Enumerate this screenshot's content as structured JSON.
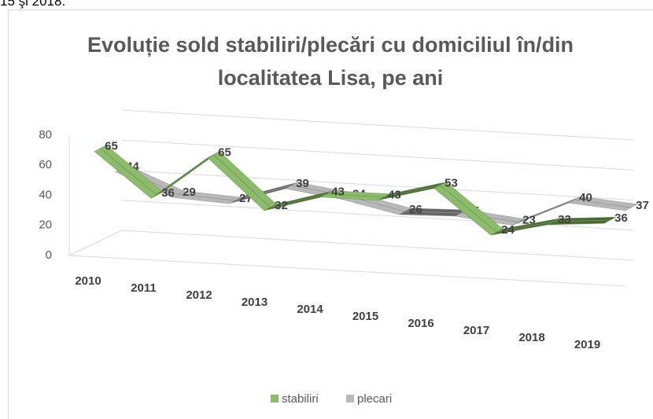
{
  "page_text": "15 şi 2018.",
  "chart_data": {
    "type": "line3d",
    "title": "Evoluție sold stabiliri/plecări cu domiciliul în/din localitatea Lisa, pe ani",
    "categories": [
      "2010",
      "2011",
      "2012",
      "2013",
      "2014",
      "2015",
      "2016",
      "2017",
      "2018",
      "2019"
    ],
    "series": [
      {
        "name": "stabiliri",
        "color": "#8cbb6c",
        "values": [
          65,
          36,
          65,
          32,
          43,
          43,
          53,
          24,
          33,
          36
        ]
      },
      {
        "name": "plecari",
        "color": "#b8b8b8",
        "values": [
          44,
          29,
          27,
          39,
          34,
          26,
          27,
          23,
          40,
          37
        ]
      }
    ],
    "ylim": [
      0,
      80
    ],
    "yticks": [
      0,
      20,
      40,
      60,
      80
    ],
    "grid": true,
    "legend": "bottom"
  }
}
